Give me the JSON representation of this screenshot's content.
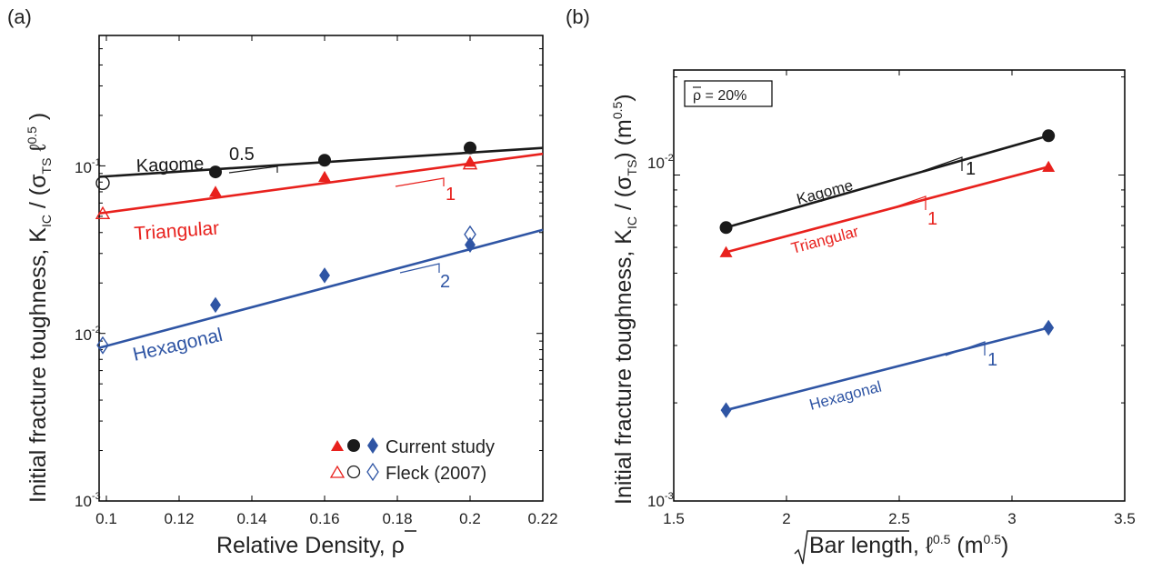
{
  "chart_data": [
    {
      "panel_label": "(a)",
      "type": "scatter",
      "x_scale": "linear",
      "y_scale": "log",
      "xlabel": "Relative Density, ρ̄",
      "ylabel": "Initial fracture toughness, K_IC / (σ_TS ℓ^0.5)",
      "xlim": [
        0.098,
        0.22
      ],
      "ylim": [
        0.001,
        0.6
      ],
      "x_ticks": [
        0.1,
        0.12,
        0.14,
        0.16,
        0.18,
        0.2,
        0.22
      ],
      "x_tick_labels": [
        "0.1",
        "0.12",
        "0.14",
        "0.16",
        "0.18",
        "0.2",
        "0.22"
      ],
      "y_ticks": [
        0.001,
        0.01,
        0.1
      ],
      "grid": false,
      "series": [
        {
          "name": "Kagome",
          "group": "Current study",
          "marker": "filled-circle",
          "color": "#1a1a1a",
          "x": [
            0.13,
            0.16,
            0.2
          ],
          "y": [
            0.092,
            0.108,
            0.128
          ]
        },
        {
          "name": "Triangular",
          "group": "Current study",
          "marker": "filled-triangle",
          "color": "#e8211d",
          "x": [
            0.13,
            0.16,
            0.2
          ],
          "y": [
            0.07,
            0.086,
            0.106
          ]
        },
        {
          "name": "Hexagonal",
          "group": "Current study",
          "marker": "filled-diamond",
          "color": "#2f55a4",
          "x": [
            0.13,
            0.16,
            0.2
          ],
          "y": [
            0.0148,
            0.0222,
            0.0338
          ]
        },
        {
          "name": "Kagome",
          "group": "Fleck (2007)",
          "marker": "open-circle",
          "color": "#1a1a1a",
          "x": [
            0.099
          ],
          "y": [
            0.079
          ]
        },
        {
          "name": "Triangular",
          "group": "Fleck (2007)",
          "marker": "open-triangle",
          "color": "#e8211d",
          "x": [
            0.099,
            0.2
          ],
          "y": [
            0.052,
            0.103
          ]
        },
        {
          "name": "Hexagonal",
          "group": "Fleck (2007)",
          "marker": "open-diamond",
          "color": "#2f55a4",
          "x": [
            0.099,
            0.2
          ],
          "y": [
            0.0085,
            0.039
          ]
        }
      ],
      "fit_lines": [
        {
          "label": "Kagome",
          "color": "#1a1a1a",
          "x": [
            0.098,
            0.22
          ],
          "y": [
            0.086,
            0.128
          ]
        },
        {
          "label": "Triangular",
          "color": "#e8211d",
          "x": [
            0.098,
            0.22
          ],
          "y": [
            0.052,
            0.118
          ]
        },
        {
          "label": "Hexagonal",
          "color": "#2f55a4",
          "x": [
            0.098,
            0.22
          ],
          "y": [
            0.0082,
            0.0415
          ]
        }
      ],
      "slope_triangles": [
        {
          "label": "0.5",
          "color": "#1a1a1a"
        },
        {
          "label": "1",
          "color": "#e8211d"
        },
        {
          "label": "2",
          "color": "#2f55a4"
        }
      ],
      "legend": {
        "placement": "bottom-right",
        "entries": [
          {
            "label": "Current study",
            "markers": [
              "filled-triangle",
              "filled-circle",
              "filled-diamond"
            ]
          },
          {
            "label": "Fleck (2007)",
            "markers": [
              "open-triangle",
              "open-circle",
              "open-diamond"
            ]
          }
        ]
      }
    },
    {
      "panel_label": "(b)",
      "type": "line",
      "x_scale": "linear",
      "y_scale": "log",
      "xlabel": "√Bar length, ℓ^0.5 (m^0.5)",
      "ylabel": "Initial fracture toughness, K_IC / (σ_TS) (m^0.5)",
      "xlim": [
        1.5,
        3.5
      ],
      "ylim": [
        0.001,
        0.021
      ],
      "x_ticks": [
        1.5,
        2,
        2.5,
        3,
        3.5
      ],
      "x_tick_labels": [
        "1.5",
        "2",
        "2.5",
        "3",
        "3.5"
      ],
      "y_ticks": [
        0.001,
        0.01
      ],
      "grid": false,
      "annotation": "ρ̄ = 20%",
      "series": [
        {
          "name": "Kagome",
          "marker": "filled-circle",
          "color": "#1a1a1a",
          "x": [
            1.732,
            3.162
          ],
          "y": [
            0.0069,
            0.0132
          ]
        },
        {
          "name": "Triangular",
          "marker": "filled-triangle",
          "color": "#e8211d",
          "x": [
            1.732,
            3.162
          ],
          "y": [
            0.0058,
            0.0106
          ]
        },
        {
          "name": "Hexagonal",
          "marker": "filled-diamond",
          "color": "#2f55a4",
          "x": [
            1.732,
            3.162
          ],
          "y": [
            0.0019,
            0.0034
          ]
        }
      ],
      "slope_triangles": [
        {
          "label": "1",
          "color": "#1a1a1a"
        },
        {
          "label": "1",
          "color": "#e8211d"
        },
        {
          "label": "1",
          "color": "#2f55a4"
        }
      ]
    }
  ],
  "text": {
    "a_panel": "(a)",
    "b_panel": "(b)",
    "a_x_main": "Relative Density, ",
    "a_x_rho": "ρ",
    "a_y_main": "Initial fracture toughness, K",
    "a_y_ic": "IC",
    "a_y_slash": " / (σ",
    "a_y_ts": "TS",
    "a_y_ell": " ℓ",
    "a_y_exp": "0.5",
    "a_y_close": " )",
    "b_x_bar": "Bar length,",
    "b_x_ell": " ℓ",
    "b_x_exp": "0.5",
    "b_x_unit": " (m",
    "b_x_unit_exp": "0.5",
    "b_x_close": ")",
    "b_y_main": "Initial fracture toughness, K",
    "b_y_ic": "IC",
    "b_y_slash": " / (σ",
    "b_y_ts": "TS",
    "b_y_close": ")",
    "b_y_unit": " (m",
    "b_y_unit_exp": "0.5",
    "b_y_unit_close": ")",
    "legend_current": "Current study",
    "legend_fleck": "Fleck (2007)",
    "kagome": "Kagome",
    "triangular": "Triangular",
    "hexagonal": "Hexagonal",
    "a_slope_k": "0.5",
    "a_slope_t": "1",
    "a_slope_h": "2",
    "b_slope_k": "1",
    "b_slope_t": "1",
    "b_slope_h": "1",
    "b_box_rho": "ρ",
    "b_box_val": " = 20%",
    "y_base": "10",
    "y_exp_m3": "-3",
    "y_exp_m2": "-2",
    "y_exp_m1": "-1"
  }
}
